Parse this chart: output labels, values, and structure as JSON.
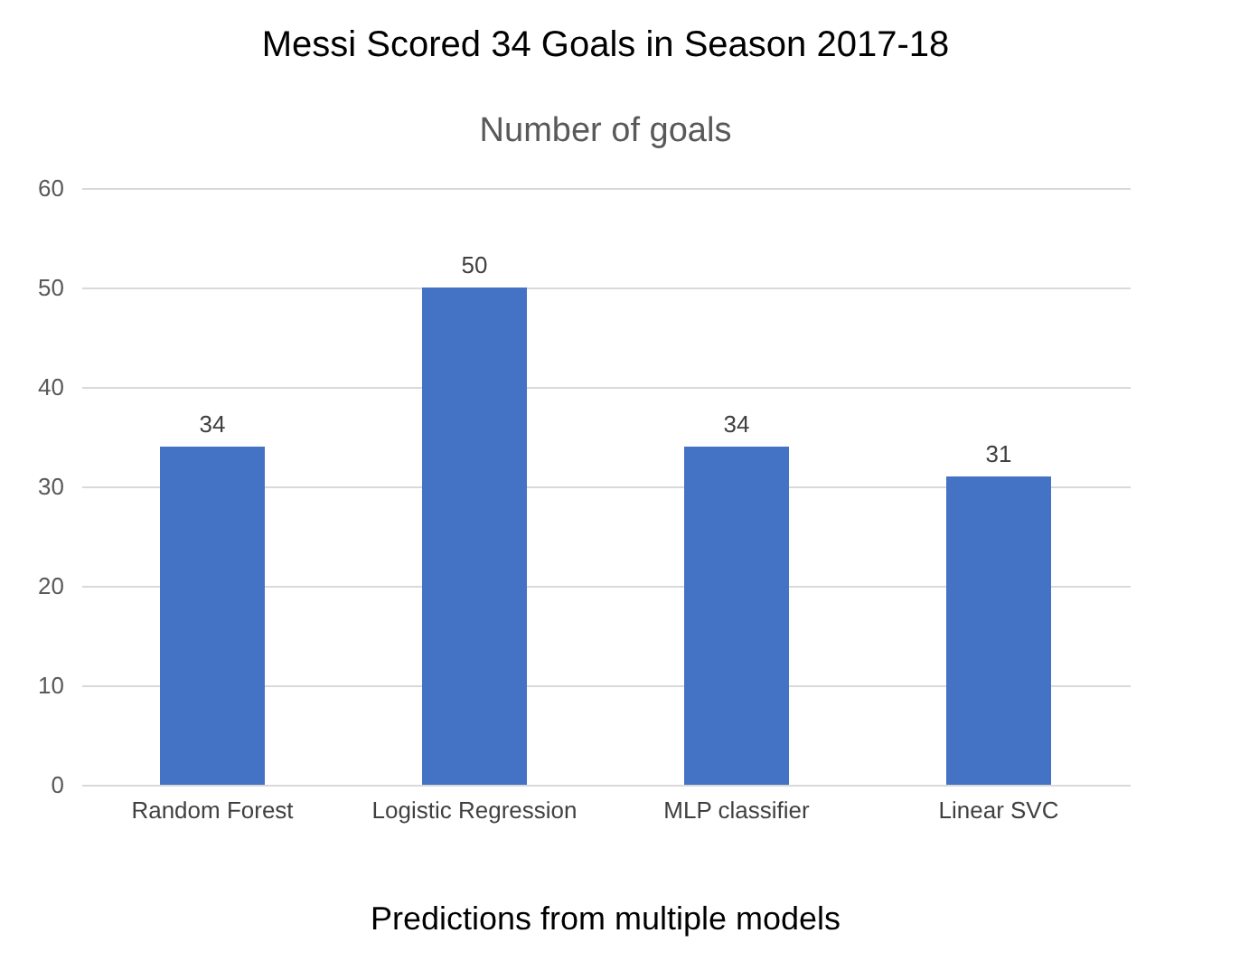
{
  "chart_data": {
    "type": "bar",
    "title": "Messi Scored 34 Goals in Season 2017-18",
    "subtitle": "Number of goals",
    "annotations": [
      "Predictions from multiple models"
    ],
    "categories": [
      "Random Forest",
      "Logistic Regression",
      "MLP classifier",
      "Linear SVC"
    ],
    "values": [
      34,
      50,
      34,
      31
    ],
    "color": "#4472c4",
    "ylim": [
      0,
      60
    ],
    "yticks": [
      0,
      10,
      20,
      30,
      40,
      50,
      60
    ],
    "grid": "y",
    "data_labels": true
  }
}
